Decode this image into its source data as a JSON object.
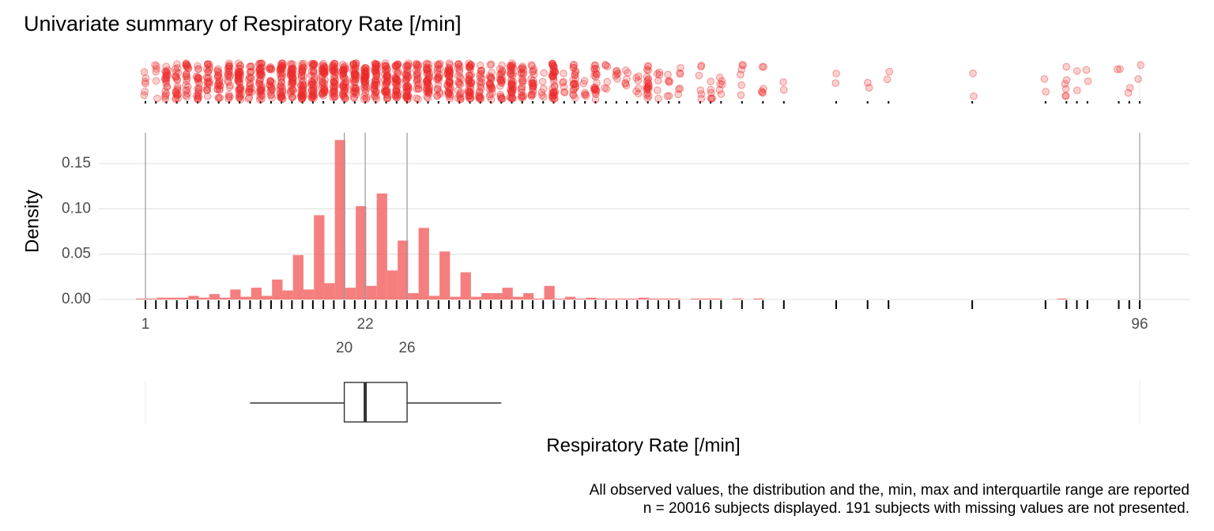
{
  "chart_data": {
    "type": "histogram",
    "title": "Univariate summary of Respiratory Rate [/min]",
    "x_label": "Respiratory Rate [/min]",
    "y_label": "Density",
    "captions": [
      "All observed values, the distribution and the, min, max and interquartile range are reported",
      "n = 20016 subjects displayed. 191 subjects with missing values are not presented."
    ],
    "bins": [
      0.1,
      1.1,
      2.1,
      3.1,
      4.1,
      5.1,
      6.1,
      7.1,
      8.1,
      9.1,
      10.1,
      11.1,
      12.1,
      13.1,
      14.1,
      15.1,
      16.1,
      17.1,
      18.1,
      19.1,
      20.1,
      21.1,
      22.1,
      23.1,
      24.1,
      25.1,
      26.1,
      27.1,
      28.1,
      29.1,
      30.1,
      31.1,
      32.1,
      33.1,
      34.1,
      35.1,
      36.1,
      37.1,
      38.1,
      39.1,
      40.1,
      41.1,
      42.1,
      43.1,
      44.1,
      45.1,
      46.1,
      47.1,
      48.1,
      49.1,
      50.1,
      51.1,
      52.1,
      53.1,
      54.1,
      55.1,
      56.1,
      57.1,
      58.1,
      59.1,
      60.1,
      61.1,
      62.1,
      63.1,
      64.1,
      65.1,
      66.1,
      67.1,
      68.1,
      69.1,
      70.1,
      71.1,
      72.1,
      73.1,
      74.1,
      75.1,
      76.1,
      77.1,
      78.1,
      79.1,
      80.1,
      81.1,
      82.1,
      83.1,
      84.1,
      85.1,
      86.1,
      87.1,
      88.1,
      89.1,
      90.1,
      91.1,
      92.1,
      93.1,
      94.1,
      95.1,
      96.1
    ],
    "values": [
      0.001,
      0.001,
      0.002,
      0.002,
      0.002,
      0.004,
      0.002,
      0.006,
      0.002,
      0.011,
      0.003,
      0.013,
      0.004,
      0.022,
      0.01,
      0.049,
      0.011,
      0.093,
      0.018,
      0.176,
      0.013,
      0.103,
      0.015,
      0.117,
      0.032,
      0.065,
      0.007,
      0.079,
      0.004,
      0.053,
      0.003,
      0.03,
      0.003,
      0.007,
      0.007,
      0.013,
      0.003,
      0.007,
      0.001,
      0.015,
      0.001,
      0.003,
      0.001,
      0.002,
      0.001,
      0.001,
      0.001,
      0.001,
      0.002,
      0.001,
      0.001,
      0.001,
      0,
      0.001,
      0.001,
      0.001,
      0,
      0.001,
      0,
      0.001,
      0,
      0,
      0,
      0,
      0,
      0,
      0,
      0,
      0,
      0,
      0,
      0,
      0,
      0,
      0,
      0,
      0,
      0,
      0,
      0,
      0,
      0,
      0,
      0,
      0,
      0,
      0,
      0,
      0.001,
      0,
      0,
      0,
      0,
      0,
      0,
      0
    ],
    "color": "#f35f5f",
    "point_color": "#ee2b2b",
    "rug": [
      1,
      2,
      3,
      4,
      5,
      6,
      7,
      8,
      9,
      10,
      11,
      12,
      13,
      14,
      15,
      16,
      17,
      18,
      19,
      20,
      21,
      22,
      23,
      24,
      25,
      26,
      27,
      28,
      29,
      30,
      31,
      32,
      33,
      34,
      35,
      36,
      37,
      38,
      39,
      40,
      41,
      42,
      43,
      44,
      45,
      46,
      47,
      48,
      49,
      50,
      51,
      52,
      54,
      55,
      56,
      58,
      60,
      62,
      67,
      70,
      72,
      80,
      87,
      89,
      90,
      91,
      94,
      95,
      96
    ],
    "box": {
      "whisker_low": 11,
      "q1": 20,
      "median": 22,
      "q3": 26,
      "whisker_high": 35
    },
    "xlim": [
      1,
      96
    ],
    "xticks": [
      1,
      20,
      22,
      26,
      96
    ],
    "ylim": [
      0,
      0.18
    ],
    "yticks": [
      {
        "value": 0,
        "label": "0.00"
      },
      {
        "value": 0.05,
        "label": "0.05"
      },
      {
        "value": 0.1,
        "label": "0.10"
      },
      {
        "value": 0.15,
        "label": "0.15"
      }
    ],
    "grid": true
  }
}
